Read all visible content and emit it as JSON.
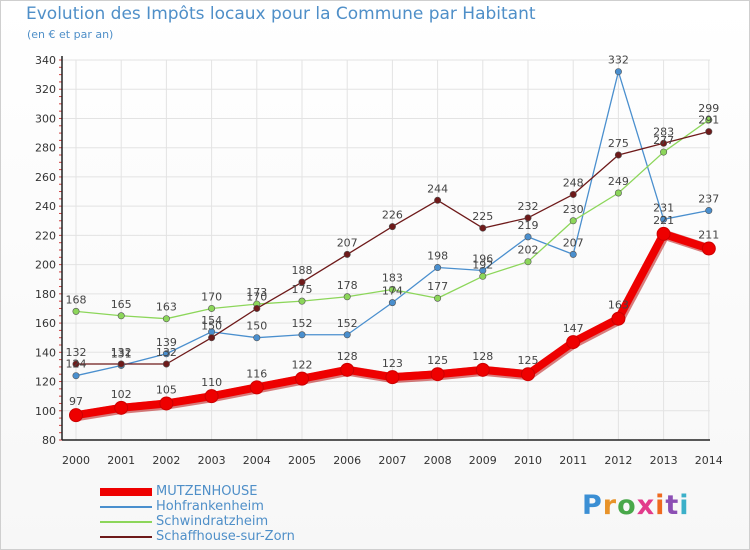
{
  "chart_data": {
    "type": "line",
    "title": "Evolution des Impôts locaux pour la Commune par Habitant",
    "subtitle": "(en € et par an)",
    "xlabel": "",
    "ylabel": "",
    "x": [
      "2000",
      "2001",
      "2002",
      "2003",
      "2004",
      "2005",
      "2006",
      "2007",
      "2008",
      "2009",
      "2010",
      "2011",
      "2012",
      "2013",
      "2014"
    ],
    "ylim": [
      80,
      340
    ],
    "yticks": [
      80,
      100,
      120,
      140,
      160,
      180,
      200,
      220,
      240,
      260,
      280,
      300,
      320,
      340
    ],
    "grid": true,
    "legend_position": "bottom-left",
    "series": [
      {
        "name": "MUTZENHOUSE",
        "color": "#ee0000",
        "values": [
          97,
          102,
          105,
          110,
          116,
          122,
          128,
          123,
          125,
          128,
          125,
          147,
          163,
          221,
          211
        ]
      },
      {
        "name": "Hohfrankenheim",
        "color": "#4a8fce",
        "values": [
          124,
          131,
          139,
          154,
          150,
          152,
          152,
          174,
          198,
          196,
          219,
          207,
          332,
          231,
          237
        ]
      },
      {
        "name": "Schwindratzheim",
        "color": "#8cd65a",
        "values": [
          168,
          165,
          163,
          170,
          173,
          175,
          178,
          183,
          177,
          192,
          202,
          230,
          249,
          277,
          299
        ]
      },
      {
        "name": "Schaffhouse-sur-Zorn",
        "color": "#6e1a1a",
        "values": [
          132,
          132,
          132,
          150,
          170,
          188,
          207,
          226,
          244,
          225,
          232,
          248,
          275,
          283,
          291
        ]
      }
    ]
  },
  "logo": {
    "letters": [
      "P",
      "r",
      "o",
      "x",
      "i",
      "t",
      "i"
    ],
    "colors": [
      "#3b8fd4",
      "#e8932a",
      "#49a84a",
      "#e23b8b",
      "#ef6a1f",
      "#8c4fb4",
      "#3bb0c9"
    ]
  }
}
